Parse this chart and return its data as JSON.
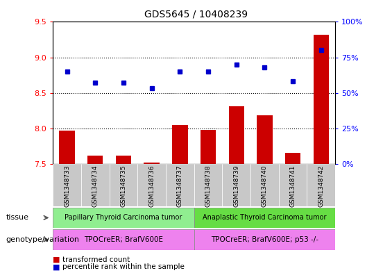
{
  "title": "GDS5645 / 10408239",
  "samples": [
    "GSM1348733",
    "GSM1348734",
    "GSM1348735",
    "GSM1348736",
    "GSM1348737",
    "GSM1348738",
    "GSM1348739",
    "GSM1348740",
    "GSM1348741",
    "GSM1348742"
  ],
  "bar_values": [
    7.97,
    7.62,
    7.62,
    7.52,
    8.05,
    7.98,
    8.31,
    8.18,
    7.65,
    9.32
  ],
  "bar_base": 7.5,
  "dot_percentile": [
    65,
    57,
    57,
    53,
    65,
    65,
    70,
    68,
    58,
    80
  ],
  "ylim_left": [
    7.5,
    9.5
  ],
  "ylim_right": [
    0,
    100
  ],
  "yticks_left": [
    7.5,
    8.0,
    8.5,
    9.0,
    9.5
  ],
  "yticks_right": [
    0,
    25,
    50,
    75,
    100
  ],
  "ytick_labels_right": [
    "0%",
    "25%",
    "50%",
    "75%",
    "100%"
  ],
  "bar_color": "#cc0000",
  "dot_color": "#0000cc",
  "tissue_group1_label": "Papillary Thyroid Carcinoma tumor",
  "tissue_group2_label": "Anaplastic Thyroid Carcinoma tumor",
  "tissue_color1": "#90ee90",
  "tissue_color2": "#66dd44",
  "genotype_group1_label": "TPOCreER; BrafV600E",
  "genotype_group2_label": "TPOCreER; BrafV600E; p53 -/-",
  "genotype_color": "#ee82ee",
  "tissue_label": "tissue",
  "genotype_label": "genotype/variation",
  "legend_bar": "transformed count",
  "legend_dot": "percentile rank within the sample",
  "bg_color": "#ffffff",
  "sample_bg_color": "#c8c8c8",
  "group1_size": 5,
  "group2_size": 5
}
